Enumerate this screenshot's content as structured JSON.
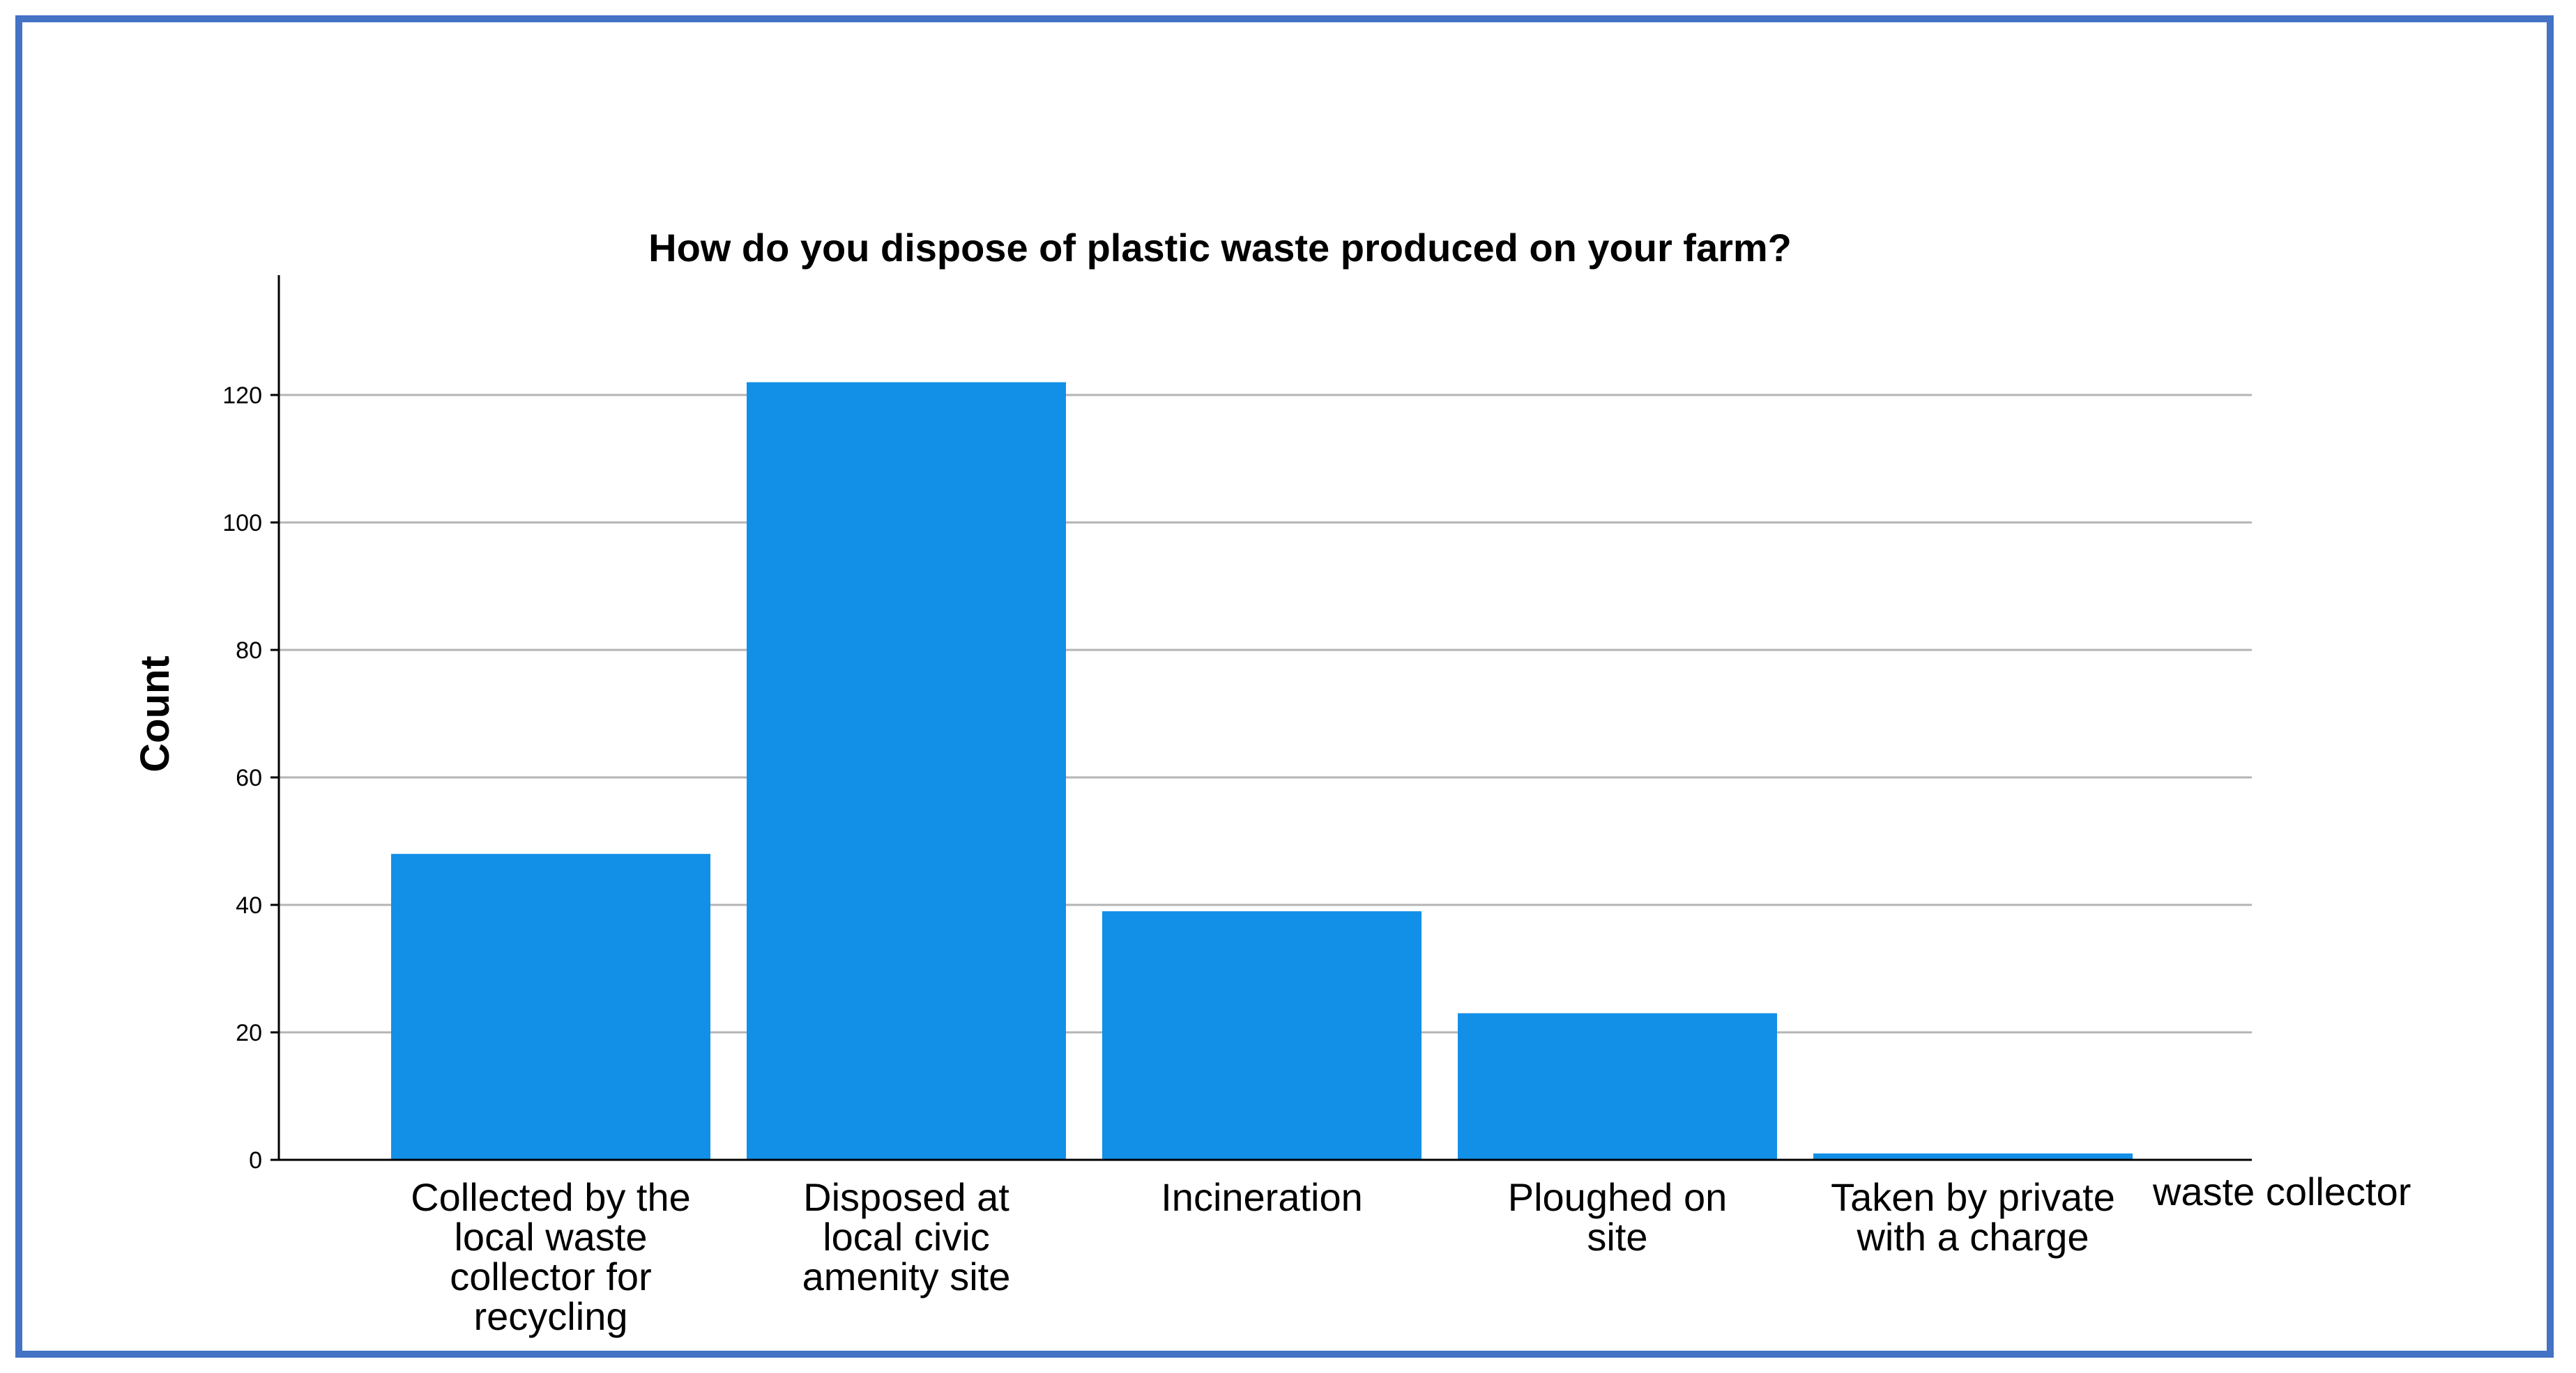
{
  "chart_data": {
    "type": "bar",
    "title": "How do you dispose of plastic waste produced on your farm?",
    "xlabel": "",
    "ylabel": "Count",
    "ylim": [
      0,
      138
    ],
    "yticks": [
      0,
      20,
      40,
      60,
      80,
      100,
      120
    ],
    "grid": true,
    "bar_color": "#1290e8",
    "categories": [
      [
        "Collected by the",
        "local waste",
        "collector for",
        "recycling"
      ],
      [
        "Disposed at",
        "local civic",
        "amenity site"
      ],
      [
        "Incineration"
      ],
      [
        "Ploughed on",
        "site"
      ],
      [
        "Taken by private",
        "with a charge"
      ]
    ],
    "overflow_label": "waste collector",
    "values": [
      48,
      122,
      39,
      23,
      1
    ]
  }
}
